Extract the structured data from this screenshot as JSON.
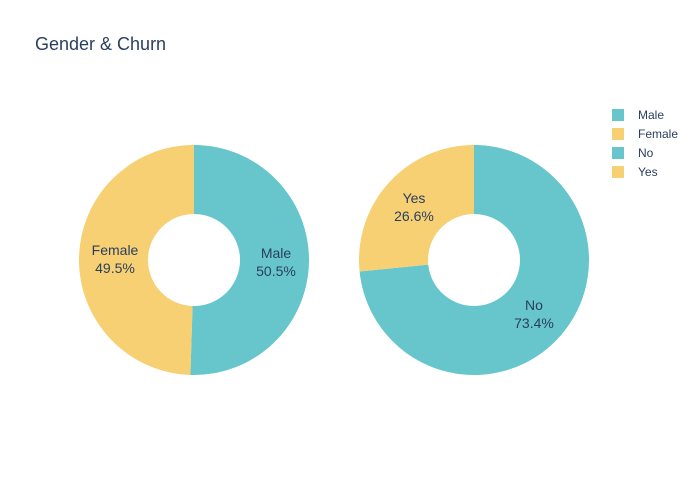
{
  "chart_data": {
    "type": "pie",
    "title": "Gender & Churn",
    "legend_placement": "top-right",
    "charts": [
      {
        "hole": true,
        "slices": [
          {
            "label": "Male",
            "value": 50.5,
            "percent_text": "50.5%",
            "color": "#67c5cc"
          },
          {
            "label": "Female",
            "value": 49.5,
            "percent_text": "49.5%",
            "color": "#f6d073"
          }
        ]
      },
      {
        "hole": true,
        "slices": [
          {
            "label": "No",
            "value": 73.4,
            "percent_text": "73.4%",
            "color": "#67c5cc"
          },
          {
            "label": "Yes",
            "value": 26.6,
            "percent_text": "26.6%",
            "color": "#f6d073"
          }
        ]
      }
    ],
    "legend": [
      {
        "label": "Male",
        "color": "#67c5cc"
      },
      {
        "label": "Female",
        "color": "#f6d073"
      },
      {
        "label": "No",
        "color": "#67c5cc"
      },
      {
        "label": "Yes",
        "color": "#f6d073"
      }
    ]
  }
}
